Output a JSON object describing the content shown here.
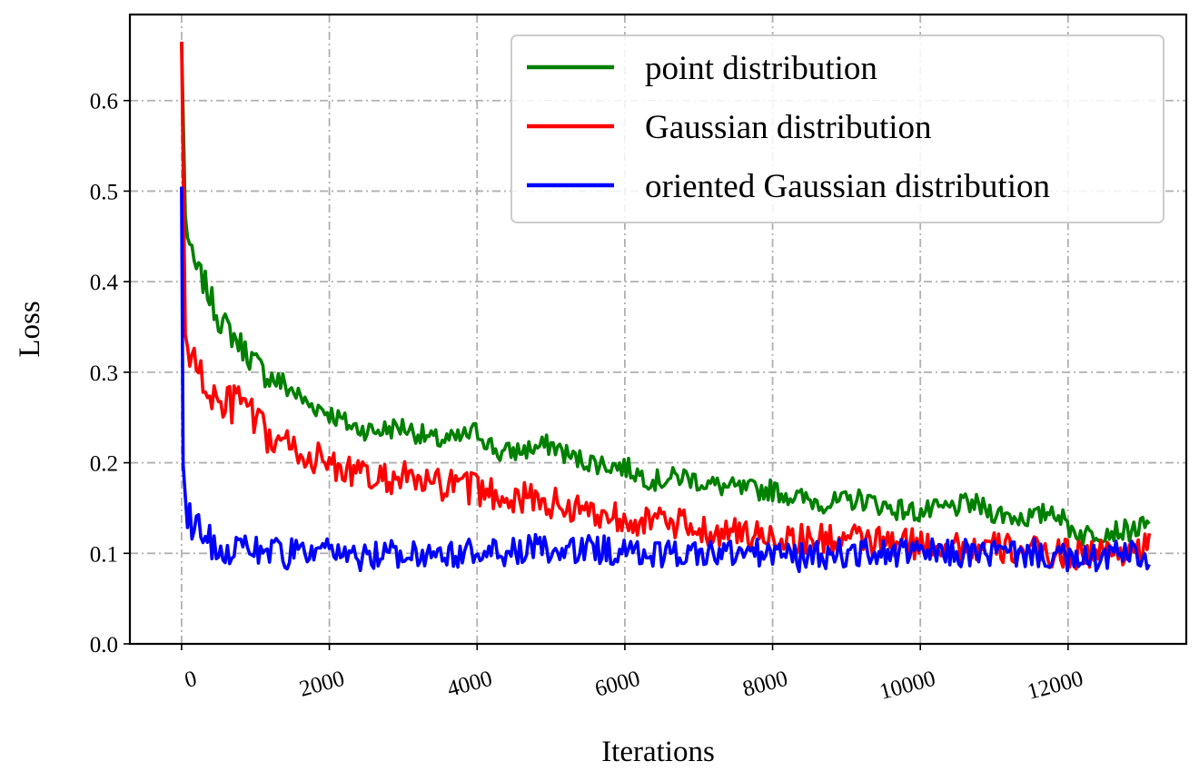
{
  "chart_data": {
    "type": "line",
    "title": "",
    "xlabel": "Iterations",
    "ylabel": "Loss",
    "xlim": [
      -700,
      13600
    ],
    "ylim": [
      0.0,
      0.695
    ],
    "xticks": [
      0,
      2000,
      4000,
      6000,
      8000,
      10000,
      12000
    ],
    "xtick_labels": [
      "0",
      "2000",
      "4000",
      "6000",
      "8000",
      "10000",
      "12000"
    ],
    "yticks": [
      0.0,
      0.1,
      0.2,
      0.3,
      0.4,
      0.5,
      0.6
    ],
    "ytick_labels": [
      "0.0",
      "0.1",
      "0.2",
      "0.3",
      "0.4",
      "0.5",
      "0.6"
    ],
    "grid": true,
    "grid_style": "dash-dot",
    "legend_position": "upper-right",
    "xtick_rotation": 15,
    "colors": {
      "point": "#008000",
      "gaussian": "#ff0000",
      "oriented": "#0000ff",
      "grid": "#b0b0b0",
      "legend_border": "#cccccc"
    },
    "series": [
      {
        "name": "point distribution",
        "color": "#008000",
        "x": [
          0,
          50,
          150,
          300,
          500,
          700,
          900,
          1100,
          1300,
          1500,
          1700,
          1900,
          2100,
          2300,
          2600,
          3000,
          3400,
          3700,
          4000,
          4300,
          4700,
          5000,
          5300,
          5600,
          6000,
          6400,
          6800,
          7200,
          7600,
          8000,
          8400,
          8800,
          9200,
          9600,
          10000,
          10400,
          10700,
          11000,
          11300,
          11600,
          11800,
          12000,
          12200,
          12500,
          12800,
          13100
        ],
        "y": [
          0.665,
          0.47,
          0.42,
          0.4,
          0.36,
          0.34,
          0.32,
          0.3,
          0.29,
          0.28,
          0.265,
          0.26,
          0.25,
          0.24,
          0.235,
          0.24,
          0.225,
          0.225,
          0.235,
          0.21,
          0.215,
          0.22,
          0.205,
          0.2,
          0.195,
          0.18,
          0.185,
          0.175,
          0.17,
          0.17,
          0.16,
          0.155,
          0.16,
          0.15,
          0.145,
          0.15,
          0.155,
          0.145,
          0.14,
          0.14,
          0.15,
          0.13,
          0.12,
          0.125,
          0.125,
          0.13
        ]
      },
      {
        "name": "Gaussian distribution",
        "color": "#ff0000",
        "x": [
          0,
          50,
          150,
          300,
          500,
          700,
          850,
          1000,
          1200,
          1400,
          1600,
          1800,
          2000,
          2300,
          2600,
          3000,
          3300,
          3600,
          4000,
          4300,
          4700,
          5000,
          5300,
          5600,
          6000,
          6400,
          6800,
          7200,
          7600,
          8000,
          8400,
          8800,
          9200,
          9600,
          10000,
          10400,
          10800,
          11200,
          11600,
          12000,
          12400,
          12800,
          13100
        ],
        "y": [
          0.665,
          0.34,
          0.31,
          0.29,
          0.26,
          0.265,
          0.27,
          0.24,
          0.225,
          0.22,
          0.21,
          0.205,
          0.2,
          0.19,
          0.18,
          0.185,
          0.175,
          0.175,
          0.17,
          0.165,
          0.16,
          0.155,
          0.15,
          0.145,
          0.14,
          0.135,
          0.13,
          0.125,
          0.12,
          0.12,
          0.115,
          0.115,
          0.115,
          0.11,
          0.11,
          0.11,
          0.105,
          0.105,
          0.1,
          0.1,
          0.1,
          0.105,
          0.105
        ]
      },
      {
        "name": "oriented Gaussian distribution",
        "color": "#0000ff",
        "x": [
          0,
          20,
          50,
          100,
          150,
          250,
          400,
          600,
          800,
          1000,
          1300,
          1600,
          2000,
          2400,
          2800,
          3200,
          3600,
          4000,
          4400,
          4800,
          5200,
          5600,
          6000,
          6400,
          6800,
          7200,
          7600,
          8000,
          8400,
          8800,
          9200,
          9600,
          10000,
          10400,
          10800,
          11200,
          11600,
          11900,
          12100,
          12400,
          12700,
          13000,
          13100
        ],
        "y": [
          0.505,
          0.2,
          0.16,
          0.14,
          0.135,
          0.13,
          0.11,
          0.105,
          0.11,
          0.105,
          0.1,
          0.1,
          0.1,
          0.095,
          0.1,
          0.1,
          0.1,
          0.1,
          0.1,
          0.105,
          0.1,
          0.105,
          0.1,
          0.1,
          0.1,
          0.1,
          0.1,
          0.1,
          0.095,
          0.1,
          0.1,
          0.1,
          0.1,
          0.1,
          0.1,
          0.1,
          0.1,
          0.095,
          0.09,
          0.095,
          0.1,
          0.095,
          0.09
        ]
      }
    ]
  }
}
